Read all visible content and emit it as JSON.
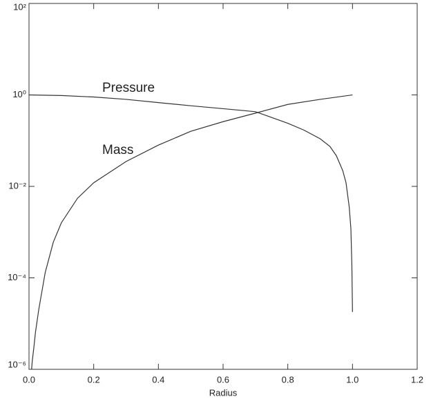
{
  "chart_data": {
    "type": "line",
    "x_label": "Radius",
    "log_y": true,
    "xlim": [
      0,
      1.2
    ],
    "xticks": [
      0.0,
      0.2,
      0.4,
      0.6,
      0.8,
      1.0,
      1.2
    ],
    "ylim": [
      1e-06,
      100
    ],
    "yticks": [
      {
        "value": 1e-06,
        "label": "10⁻⁶"
      },
      {
        "value": 0.0001,
        "label": "10⁻⁴"
      },
      {
        "value": 0.01,
        "label": "10⁻²"
      },
      {
        "value": 1,
        "label": "10⁰"
      },
      {
        "value": 100,
        "label": "10²"
      }
    ],
    "series": [
      {
        "name": "Pressure",
        "color": "#333333",
        "x": [
          0,
          0.1,
          0.2,
          0.3,
          0.4,
          0.5,
          0.6,
          0.7,
          0.8,
          0.85,
          0.9,
          0.93,
          0.95,
          0.97,
          0.98,
          0.99,
          0.995,
          0.998,
          1.0
        ],
        "values": [
          1,
          0.97,
          0.9,
          0.8,
          0.68,
          0.58,
          0.5,
          0.43,
          0.24,
          0.17,
          0.11,
          0.075,
          0.047,
          0.022,
          0.012,
          0.0035,
          0.0012,
          0.0002,
          1.8e-05
        ]
      },
      {
        "name": "Mass",
        "color": "#333333",
        "x": [
          0.008,
          0.01,
          0.015,
          0.02,
          0.03,
          0.05,
          0.075,
          0.1,
          0.15,
          0.2,
          0.3,
          0.4,
          0.5,
          0.6,
          0.7,
          0.8,
          0.9,
          1.0
        ],
        "values": [
          1e-06,
          1.5e-06,
          3e-06,
          6.5e-06,
          2e-05,
          0.00013,
          0.0006,
          0.0016,
          0.0055,
          0.012,
          0.035,
          0.08,
          0.16,
          0.26,
          0.4,
          0.62,
          0.8,
          1
        ]
      }
    ]
  }
}
